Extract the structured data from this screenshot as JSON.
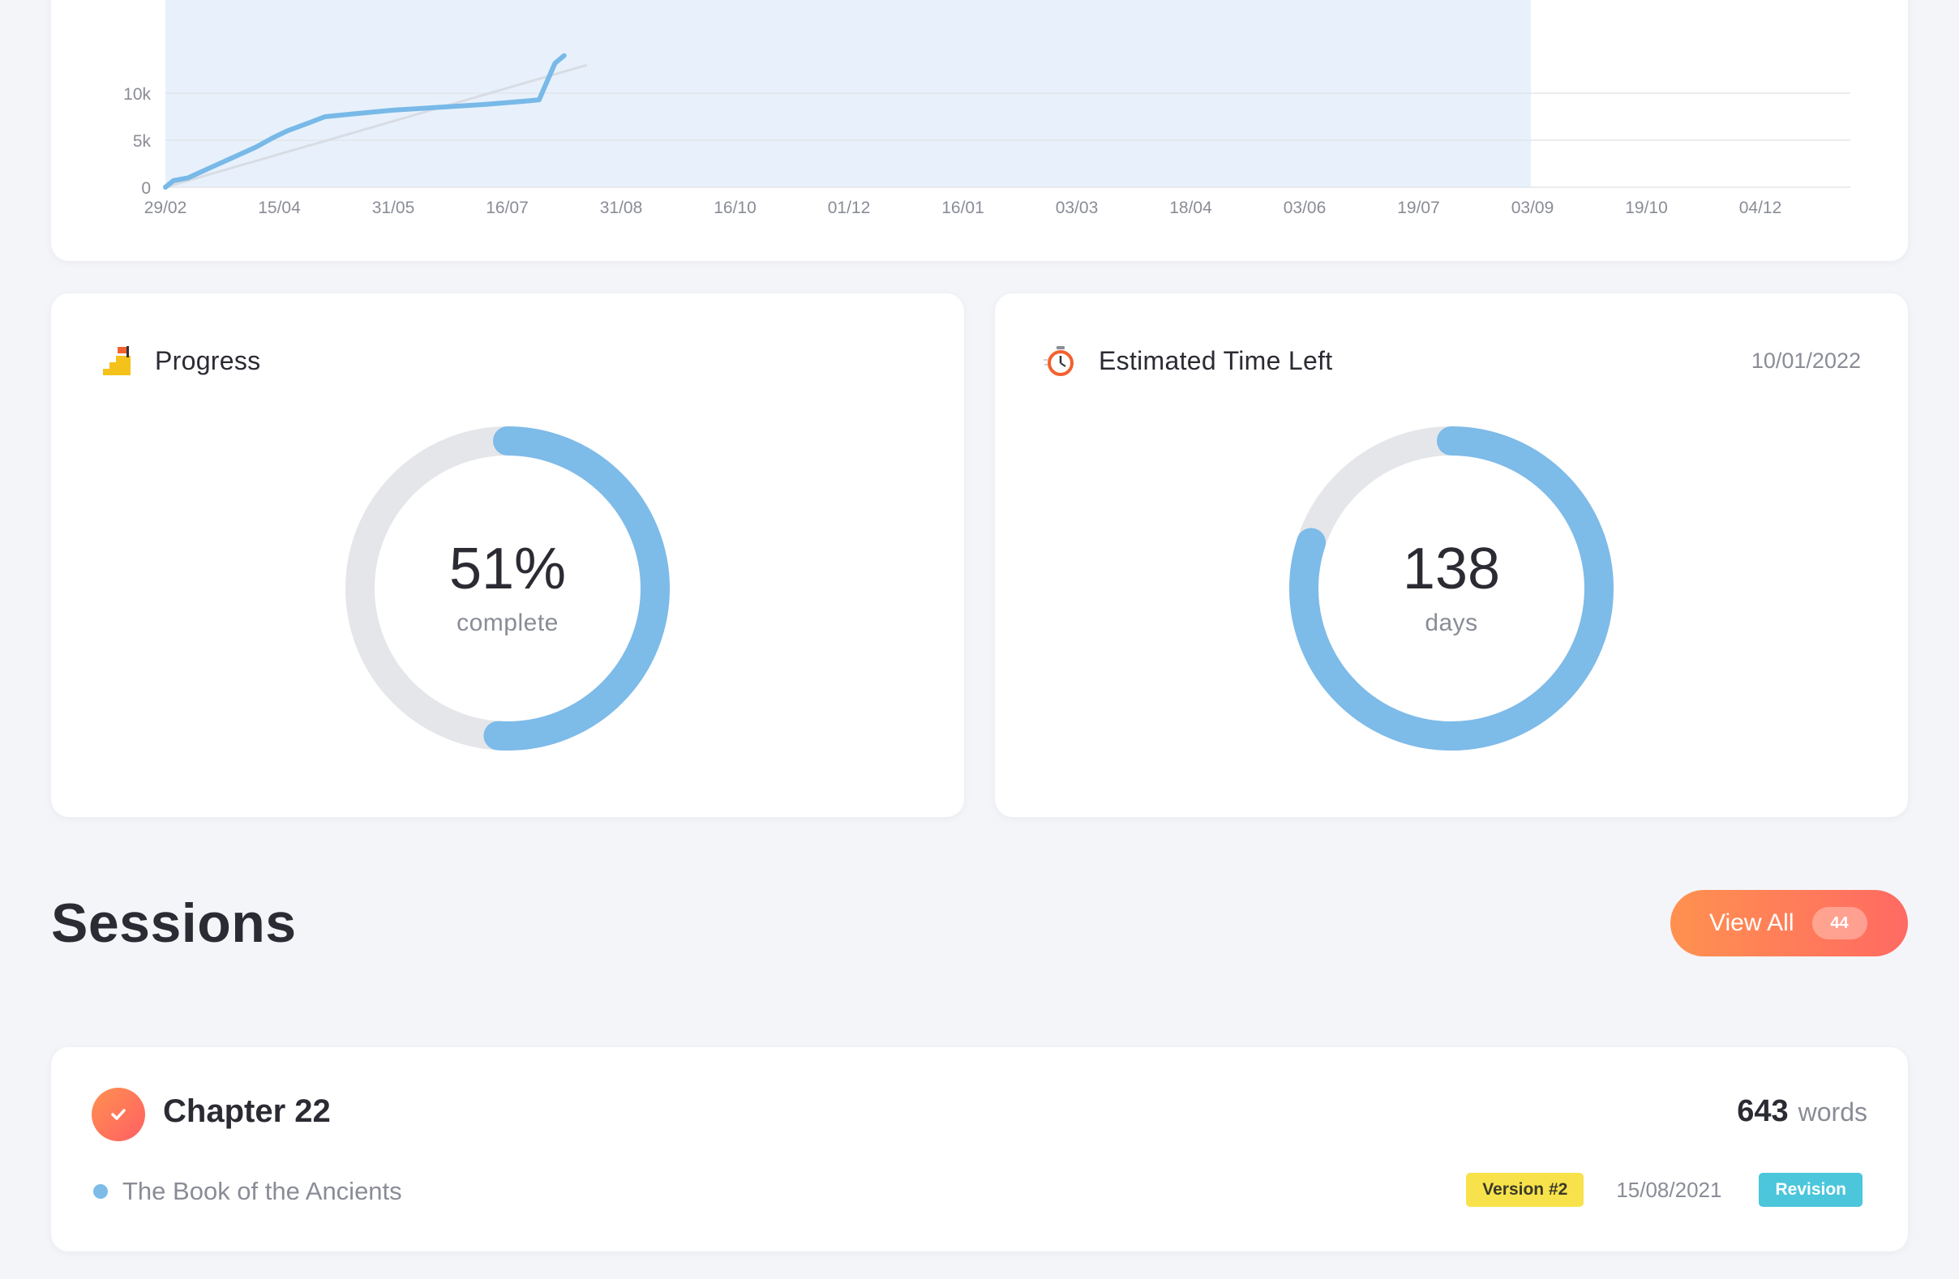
{
  "chart_data": {
    "type": "line",
    "x": [
      "29/02",
      "15/04",
      "31/05",
      "16/07",
      "31/08",
      "16/10",
      "01/12",
      "16/01",
      "03/03",
      "18/04",
      "03/06",
      "19/07",
      "03/09",
      "19/10",
      "04/12"
    ],
    "yticks": [
      0,
      5000,
      10000
    ],
    "ytick_labels": [
      "0",
      "5k",
      "10k"
    ],
    "series": [
      {
        "points": [
          [
            0,
            0
          ],
          [
            0.07,
            700
          ],
          [
            0.2,
            1000
          ],
          [
            0.38,
            2000
          ],
          [
            0.6,
            3200
          ],
          [
            0.8,
            4300
          ],
          [
            0.95,
            5300
          ],
          [
            1.07,
            6000
          ],
          [
            1.25,
            6800
          ],
          [
            1.4,
            7500
          ],
          [
            1.65,
            7800
          ],
          [
            2.0,
            8200
          ],
          [
            2.4,
            8500
          ],
          [
            2.8,
            8800
          ],
          [
            3.2,
            9200
          ],
          [
            3.28,
            9300
          ],
          [
            3.42,
            13200
          ],
          [
            3.5,
            14000
          ]
        ]
      },
      {
        "points": [
          [
            0,
            0
          ],
          [
            3.7,
            13000
          ]
        ]
      }
    ],
    "shaded_until": "03/09",
    "ylim": [
      0,
      13000
    ],
    "grid": true
  },
  "progress": {
    "title": "Progress",
    "icon": "stairs-flag-icon",
    "value": "51%",
    "unit": "complete",
    "fraction": 0.51
  },
  "time_left": {
    "title": "Estimated Time Left",
    "icon": "stopwatch-icon",
    "date": "10/01/2022",
    "value": "138",
    "unit": "days",
    "fraction": 0.8
  },
  "sessions": {
    "title": "Sessions",
    "view_all_label": "View All",
    "view_all_count": "44",
    "items": [
      {
        "title": "Chapter 22",
        "words": "643",
        "words_label": "words",
        "book": "The Book of the Ancients",
        "version": "Version #2",
        "date": "15/08/2021",
        "type": "Revision"
      }
    ]
  },
  "colors": {
    "accent_blue": "#7dbbe9",
    "ring_track": "#e5e6ea",
    "orange_start": "#ff9150",
    "orange_end": "#ff6a62",
    "badge_yellow": "#f8e24b",
    "badge_teal": "#4bc6db"
  }
}
